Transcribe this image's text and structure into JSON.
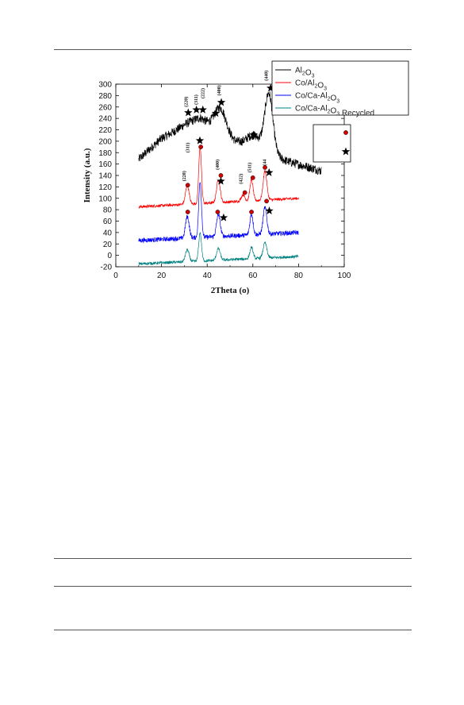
{
  "page": {
    "rules_count": 4
  },
  "chart_data": {
    "type": "line",
    "title": "",
    "xlabel": "2Theta (o)",
    "ylabel": "Intensity (a.u.)",
    "xlim": [
      0,
      100
    ],
    "ylim": [
      -20,
      300
    ],
    "x_ticks": [
      0,
      20,
      40,
      60,
      80,
      100
    ],
    "y_ticks": [
      -20,
      0,
      20,
      40,
      60,
      80,
      100,
      120,
      140,
      160,
      180,
      200,
      220,
      240,
      260,
      280,
      300
    ],
    "grid": false,
    "legend_position": "top-right",
    "series": [
      {
        "name": "Al2O3",
        "legend_base": "Al",
        "legend_sub": "2",
        "legend_rest": "O",
        "legend_sub2": "3",
        "legend_tail": "",
        "color": "#000000",
        "x_range": [
          10,
          90
        ],
        "peaks": [
          [
            31.9,
            232,
            4
          ],
          [
            37.6,
            238,
            3.5
          ],
          [
            45.8,
            258,
            2.5
          ],
          [
            60.5,
            210,
            3
          ],
          [
            67.0,
            282,
            1.8
          ]
        ],
        "noise": 8,
        "sample_points": [
          [
            10,
            168
          ],
          [
            20,
            205
          ],
          [
            30,
            225
          ],
          [
            37,
            236
          ],
          [
            45.8,
            258
          ],
          [
            52,
            200
          ],
          [
            60.5,
            210
          ],
          [
            67,
            282
          ],
          [
            75,
            165
          ],
          [
            90,
            148
          ]
        ]
      },
      {
        "name": "Co/Al2O3",
        "legend_base": "Co/Al",
        "legend_sub": "2",
        "legend_rest": "O",
        "legend_sub2": "3",
        "legend_tail": "",
        "color": "#ff0000",
        "x_range": [
          10,
          80
        ],
        "peaks": [
          [
            31.3,
            122,
            0.8
          ],
          [
            36.9,
            190,
            0.6
          ],
          [
            44.9,
            132,
            0.8
          ],
          [
            55.7,
            106,
            0.8
          ],
          [
            59.4,
            132,
            0.7
          ],
          [
            65.3,
            148,
            0.8
          ]
        ],
        "noise": 2.5,
        "sample_points": [
          [
            10,
            85
          ],
          [
            31.3,
            122
          ],
          [
            36.9,
            190
          ],
          [
            44.9,
            132
          ],
          [
            55.7,
            106
          ],
          [
            59.4,
            132
          ],
          [
            65.3,
            148
          ],
          [
            80,
            100
          ]
        ]
      },
      {
        "name": "Co/Ca-Al2O3",
        "legend_base": "Co/Ca-Al",
        "legend_sub": "2",
        "legend_rest": "O",
        "legend_sub2": "3",
        "legend_tail": "",
        "color": "#0000ff",
        "x_range": [
          10,
          80
        ],
        "peaks": [
          [
            31.3,
            68,
            0.8
          ],
          [
            36.9,
            130,
            0.6
          ],
          [
            44.9,
            72,
            0.8
          ],
          [
            59.4,
            72,
            0.7
          ],
          [
            65.3,
            84,
            0.8
          ]
        ],
        "noise": 4,
        "sample_points": [
          [
            10,
            26
          ],
          [
            31.3,
            68
          ],
          [
            36.9,
            130
          ],
          [
            44.9,
            72
          ],
          [
            59.4,
            72
          ],
          [
            65.3,
            84
          ],
          [
            80,
            40
          ]
        ]
      },
      {
        "name": "Co/Ca-Al2O3 Recycled",
        "legend_base": "Co/Ca-Al",
        "legend_sub": "2",
        "legend_rest": "O",
        "legend_sub2": "3",
        "legend_tail": " Recycled",
        "color": "#008080",
        "x_range": [
          10,
          80
        ],
        "peaks": [
          [
            31.3,
            10,
            0.8
          ],
          [
            36.9,
            40,
            0.6
          ],
          [
            44.9,
            12,
            0.8
          ],
          [
            59.4,
            14,
            0.7
          ],
          [
            65.3,
            22,
            0.8
          ]
        ],
        "noise": 2.5,
        "sample_points": [
          [
            10,
            -15
          ],
          [
            31.3,
            10
          ],
          [
            36.9,
            40
          ],
          [
            44.9,
            12
          ],
          [
            59.4,
            14
          ],
          [
            65.3,
            22
          ],
          [
            80,
            -2
          ]
        ]
      }
    ],
    "annotations": {
      "hkl_labels": [
        {
          "text": "(220)",
          "x": 31.5,
          "y": 260
        },
        {
          "text": "(311)",
          "x": 35.8,
          "y": 264
        },
        {
          "text": "(222)",
          "x": 38.8,
          "y": 275
        },
        {
          "text": "(400)",
          "x": 45.8,
          "y": 280
        },
        {
          "text": "(440)",
          "x": 66.5,
          "y": 306
        },
        {
          "text": "(220)",
          "x": 30.5,
          "y": 130
        },
        {
          "text": "(311)",
          "x": 32.2,
          "y": 180
        },
        {
          "text": "(400)",
          "x": 45.2,
          "y": 150
        },
        {
          "text": "(422)",
          "x": 55.4,
          "y": 125
        },
        {
          "text": "(511)",
          "x": 59.2,
          "y": 145
        },
        {
          "text": "(44",
          "x": 65.8,
          "y": 157
        }
      ],
      "star_markers": [
        [
          31.7,
          250
        ],
        [
          35.3,
          255
        ],
        [
          38.1,
          255
        ],
        [
          43.8,
          249
        ],
        [
          46.2,
          268
        ],
        [
          60.3,
          211
        ],
        [
          67.8,
          293
        ],
        [
          36.8,
          201
        ],
        [
          46.0,
          130
        ],
        [
          67.1,
          145
        ],
        [
          47.2,
          66
        ],
        [
          67.2,
          78
        ]
      ],
      "circle_markers": [
        [
          31.5,
          123
        ],
        [
          37.2,
          190
        ],
        [
          46.0,
          140
        ],
        [
          56.5,
          110
        ],
        [
          60.0,
          136
        ],
        [
          65.3,
          154
        ],
        [
          31.5,
          76
        ],
        [
          44.6,
          76
        ],
        [
          59.4,
          76
        ],
        [
          66.0,
          95
        ]
      ]
    },
    "marker_legend": {
      "position": "right",
      "items": [
        {
          "shape": "circle",
          "color": "#d40000"
        },
        {
          "shape": "star",
          "color": "#000000"
        }
      ]
    }
  }
}
